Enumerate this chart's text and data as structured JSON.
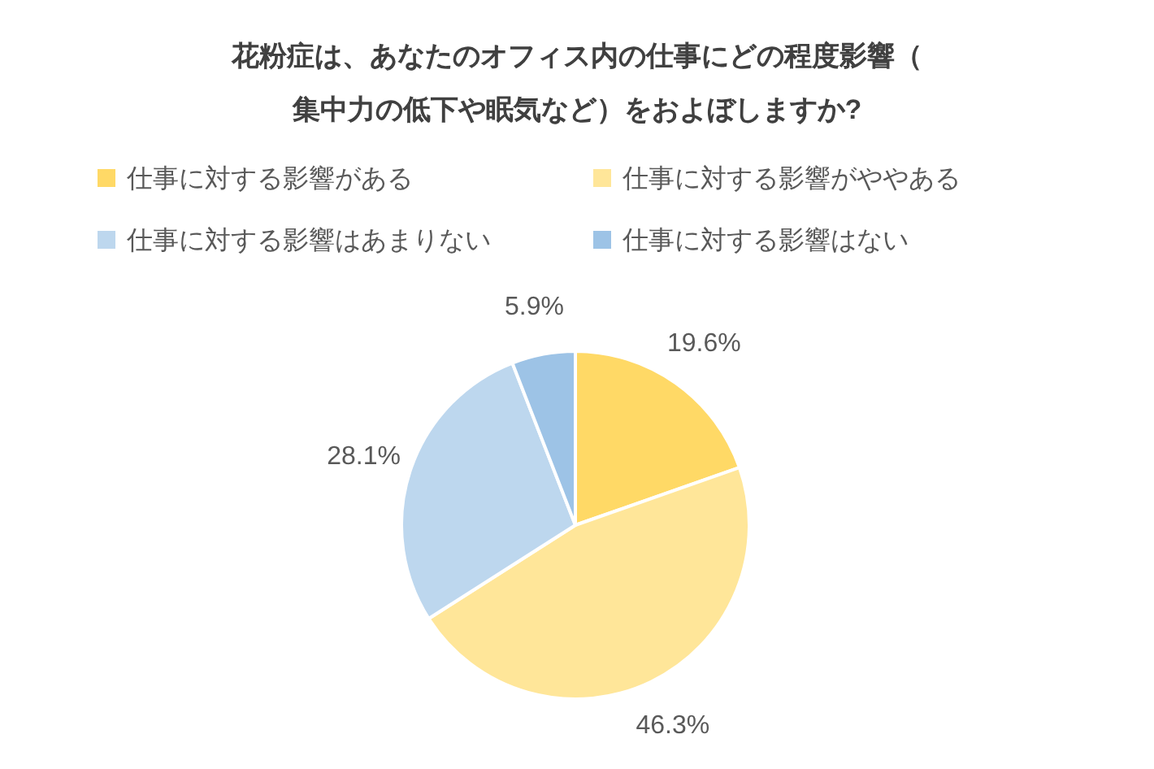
{
  "chart_data": {
    "type": "pie",
    "title": "花粉症は、あなたのオフィス内の仕事にどの程度影響（集中力の低下や眠気など）をおよぼしますか?",
    "categories": [
      "仕事に対する影響がある",
      "仕事に対する影響がややある",
      "仕事に対する影響はあまりない",
      "仕事に対する影響はない"
    ],
    "values": [
      19.6,
      46.3,
      28.1,
      5.9
    ],
    "value_labels": [
      "19.6%",
      "46.3%",
      "28.1%",
      "5.9%"
    ],
    "colors": [
      "#ffd966",
      "#ffe699",
      "#bdd7ee",
      "#9dc3e6"
    ],
    "legend": "top"
  }
}
